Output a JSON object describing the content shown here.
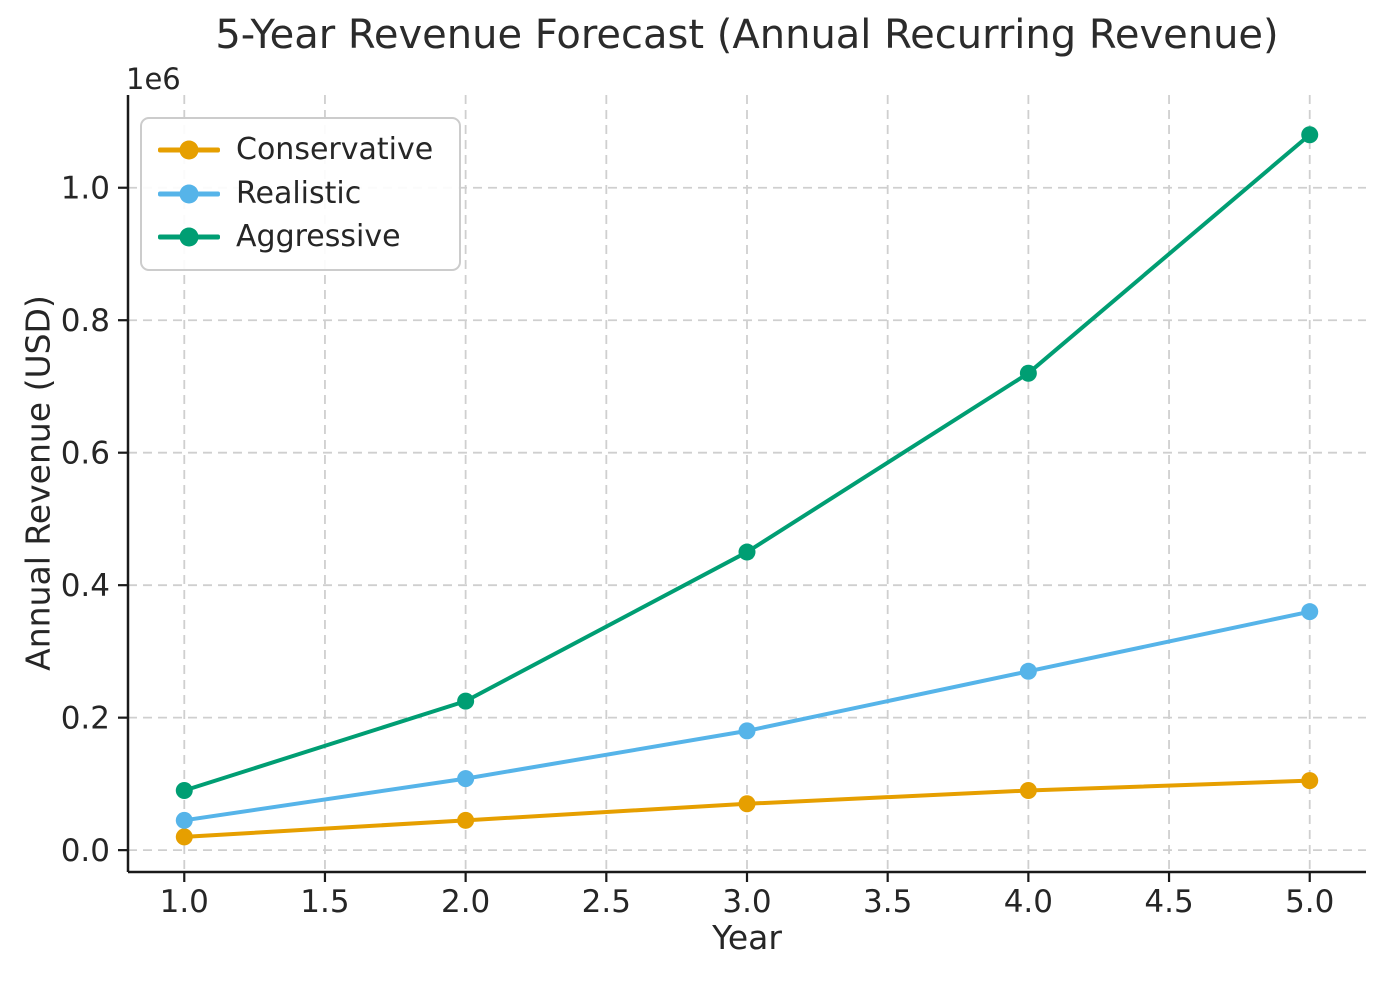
{
  "chart_data": {
    "type": "line",
    "title": "5-Year Revenue Forecast (Annual Recurring Revenue)",
    "xlabel": "Year",
    "ylabel": "Annual Revenue (USD)",
    "y_offset_label": "1e6",
    "x": [
      1,
      2,
      3,
      4,
      5
    ],
    "series": [
      {
        "name": "Conservative",
        "color": "#E69F00",
        "values": [
          20000,
          45000,
          70000,
          90000,
          105000
        ]
      },
      {
        "name": "Realistic",
        "color": "#56B4E9",
        "values": [
          45000,
          108000,
          180000,
          270000,
          360000
        ]
      },
      {
        "name": "Aggressive",
        "color": "#009E73",
        "values": [
          90000,
          225000,
          450000,
          720000,
          1080000
        ]
      }
    ],
    "xticks": [
      1.0,
      1.5,
      2.0,
      2.5,
      3.0,
      3.5,
      4.0,
      4.5,
      5.0
    ],
    "yticks": [
      0.0,
      0.2,
      0.4,
      0.6,
      0.8,
      1.0
    ],
    "xlim": [
      0.8,
      5.2
    ],
    "ylim": [
      -33000,
      1140000
    ],
    "grid": true,
    "legend_position": "upper left"
  },
  "style": {
    "background": "#ffffff",
    "grid_color": "#cfcfcf",
    "spine_color": "#1a1a1a",
    "tick_color": "#1a1a1a",
    "text_color": "#262626"
  }
}
